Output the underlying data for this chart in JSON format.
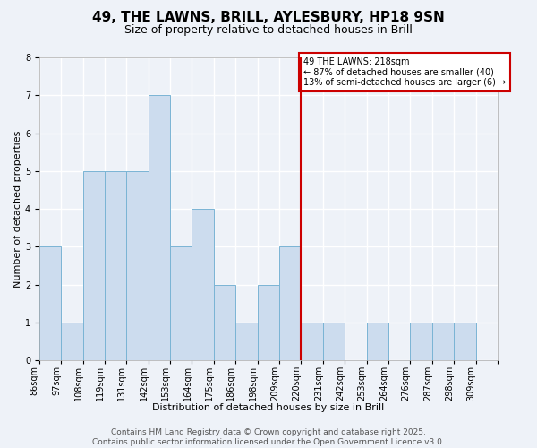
{
  "title": "49, THE LAWNS, BRILL, AYLESBURY, HP18 9SN",
  "subtitle": "Size of property relative to detached houses in Brill",
  "xlabel": "Distribution of detached houses by size in Brill",
  "ylabel": "Number of detached properties",
  "bin_labels": [
    "86sqm",
    "97sqm",
    "108sqm",
    "119sqm",
    "131sqm",
    "142sqm",
    "153sqm",
    "164sqm",
    "175sqm",
    "186sqm",
    "198sqm",
    "209sqm",
    "220sqm",
    "231sqm",
    "242sqm",
    "253sqm",
    "264sqm",
    "276sqm",
    "287sqm",
    "298sqm",
    "309sqm"
  ],
  "counts": [
    3,
    1,
    5,
    5,
    5,
    7,
    3,
    4,
    2,
    1,
    2,
    3,
    1,
    1,
    0,
    1,
    0,
    1,
    1,
    1,
    0
  ],
  "bar_facecolor": "#ccdcee",
  "bar_edgecolor": "#7ab4d4",
  "property_line_x": 12,
  "property_line_color": "#cc0000",
  "annotation_text": "49 THE LAWNS: 218sqm\n← 87% of detached houses are smaller (40)\n13% of semi-detached houses are larger (6) →",
  "annotation_box_edgecolor": "#cc0000",
  "ylim": [
    0,
    8
  ],
  "yticks": [
    0,
    1,
    2,
    3,
    4,
    5,
    6,
    7,
    8
  ],
  "footer_text": "Contains HM Land Registry data © Crown copyright and database right 2025.\nContains public sector information licensed under the Open Government Licence v3.0.",
  "background_color": "#eef2f8",
  "plot_background": "#eef2f8",
  "title_fontsize": 11,
  "subtitle_fontsize": 9,
  "axis_label_fontsize": 8,
  "tick_fontsize": 7,
  "footer_fontsize": 6.5
}
